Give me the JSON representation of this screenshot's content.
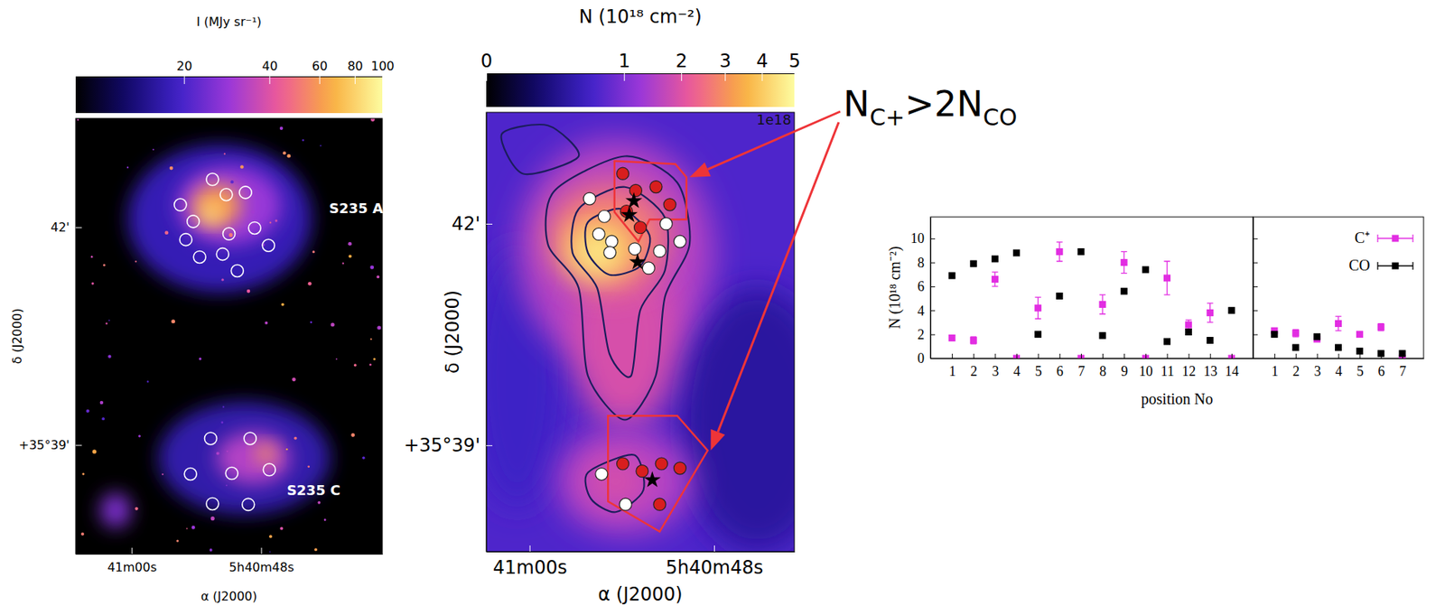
{
  "chart_data": [
    {
      "type": "image",
      "xlabel": "α (J2000)",
      "ylabel": "δ (J2000)",
      "xlim": [
        65.19,
        36.77
      ],
      "ylim": [
        37.5,
        43.5
      ],
      "xticks": [
        {
          "value": 60,
          "label": "41m00s"
        },
        {
          "value": 48,
          "label": "5h40m48s"
        }
      ],
      "yticks": [
        {
          "value": 42,
          "label": "42'"
        },
        {
          "value": 39,
          "label": "+35°39'"
        }
      ],
      "colorbar": {
        "title": "I (MJy sr⁻¹)",
        "range": [
          8.3,
          100
        ],
        "ticks": [
          20,
          40,
          60,
          80,
          100
        ],
        "log": true
      },
      "series": [
        {
          "marker": "open-circle",
          "color": "#ffffff",
          "x": [
            52.51,
            51.23,
            49.45,
            55.49,
            54.3,
            48.6,
            50.98,
            54.98,
            47.32,
            53.7,
            51.57,
            50.21,
            52.68,
            49.02,
            54.55,
            50.72,
            47.24,
            52.51,
            49.19
          ],
          "y": [
            42.66,
            42.45,
            42.48,
            42.31,
            42.08,
            41.99,
            41.91,
            41.83,
            41.75,
            41.59,
            41.63,
            41.4,
            39.09,
            39.09,
            38.6,
            38.61,
            38.66,
            38.19,
            38.18
          ]
        }
      ],
      "labels": [
        {
          "text": "S235 A",
          "x": 41.7,
          "y": 42.19
        },
        {
          "text": "S235 C",
          "x": 45.62,
          "y": 38.31
        }
      ]
    },
    {
      "type": "image",
      "xlabel": "α (J2000)",
      "ylabel": "δ (J2000)",
      "xlim": [
        62.82,
        42.78
      ],
      "ylim": [
        37.56,
        43.51
      ],
      "xticks": [
        {
          "value": 60,
          "label": "41m00s"
        },
        {
          "value": 48,
          "label": "5h40m48s"
        }
      ],
      "yticks": [
        {
          "value": 42,
          "label": "42'"
        },
        {
          "value": 39,
          "label": "+35°39'"
        }
      ],
      "colorbar": {
        "title": "N (10¹⁸ cm⁻²)",
        "range": [
          0,
          5
        ],
        "ticks": [
          0,
          1,
          2,
          3,
          4,
          5
        ],
        "multiplier": "1e18"
      },
      "series": [
        {
          "marker": "circle",
          "color": "#d81e1e",
          "x": [
            53.94,
            53.1,
            51.78,
            50.88,
            53.7,
            52.8,
            53.94,
            51.42,
            52.68,
            50.22,
            51.54
          ],
          "y": [
            42.68,
            42.45,
            42.5,
            42.26,
            42.17,
            41.95,
            38.75,
            38.75,
            38.65,
            38.69,
            38.2
          ]
        },
        {
          "marker": "circle",
          "color": "#ffffff",
          "x": [
            56.1,
            55.14,
            51.12,
            55.5,
            54.66,
            54.78,
            53.16,
            51.54,
            50.22,
            52.26,
            55.32,
            53.76
          ],
          "y": [
            42.34,
            42.1,
            42.0,
            41.86,
            41.76,
            41.61,
            41.66,
            41.63,
            41.76,
            41.4,
            38.61,
            38.2
          ]
        },
        {
          "marker": "star",
          "color": "#000000",
          "x": [
            53.22,
            53.52,
            52.98,
            52.02
          ],
          "y": [
            42.31,
            42.12,
            41.48,
            38.53
          ]
        }
      ],
      "regions": [
        [
          [
            54.48,
            42.85
          ],
          [
            50.52,
            42.81
          ],
          [
            49.8,
            42.63
          ],
          [
            49.8,
            42.06
          ],
          [
            52.2,
            42.06
          ],
          [
            52.92,
            41.76
          ],
          [
            54.48,
            42.16
          ]
        ],
        [
          [
            54.9,
            39.4
          ],
          [
            50.4,
            39.4
          ],
          [
            48.42,
            38.93
          ],
          [
            51.54,
            37.83
          ],
          [
            54.9,
            38.24
          ]
        ]
      ],
      "annotation": [
        "N",
        "C+",
        ">2N",
        "CO"
      ]
    },
    {
      "type": "scatter",
      "xlabel": "position No",
      "ylabel": "N (10¹⁸ cm⁻²)",
      "categories": [
        "1",
        "2",
        "3",
        "4",
        "5",
        "6",
        "7",
        "8",
        "9",
        "10",
        "11",
        "12",
        "13",
        "14"
      ],
      "ylim": [
        0,
        11.8
      ],
      "yticks": [
        0,
        2,
        4,
        6,
        8,
        10
      ],
      "series": [
        {
          "color": "#e22de2",
          "marker": "square",
          "values": [
            1.7,
            1.5,
            6.6,
            0,
            4.2,
            8.9,
            0,
            4.5,
            8.0,
            0,
            6.7,
            2.8,
            3.8,
            0
          ],
          "errors": [
            0.2,
            0.3,
            0.6,
            0,
            0.9,
            0.8,
            0,
            0.8,
            0.9,
            0,
            1.4,
            0.4,
            0.8,
            0
          ]
        },
        {
          "color": "#000000",
          "marker": "square",
          "values": [
            6.9,
            7.9,
            8.3,
            8.8,
            2.0,
            5.2,
            8.9,
            1.9,
            5.6,
            7.4,
            1.4,
            2.2,
            1.5,
            4.0
          ],
          "errors": [
            0.15,
            0.15,
            0.15,
            0.15,
            0.15,
            0.15,
            0.15,
            0.15,
            0.15,
            0.15,
            0.15,
            0.15,
            0.15,
            0.15
          ]
        }
      ]
    },
    {
      "type": "scatter",
      "categories": [
        "1",
        "2",
        "3",
        "4",
        "5",
        "6",
        "7"
      ],
      "ylim": [
        0,
        11.8
      ],
      "yticks": [
        0,
        2,
        4,
        6,
        8,
        10
      ],
      "tick_labels": "x",
      "legend": "upper right",
      "series": [
        {
          "name": "C⁺",
          "color": "#e22de2",
          "marker": "square",
          "values": [
            2.3,
            2.1,
            1.6,
            2.9,
            2.0,
            2.6,
            0
          ],
          "errors": [
            0.2,
            0.3,
            0.2,
            0.6,
            0.2,
            0.3,
            0
          ]
        },
        {
          "name": "CO",
          "color": "#000000",
          "marker": "square",
          "values": [
            2.0,
            0.9,
            1.8,
            0.9,
            0.6,
            0.4,
            0.4
          ],
          "errors": [
            0.15,
            0.15,
            0.15,
            0.15,
            0.15,
            0.15,
            0.15
          ]
        }
      ]
    }
  ]
}
